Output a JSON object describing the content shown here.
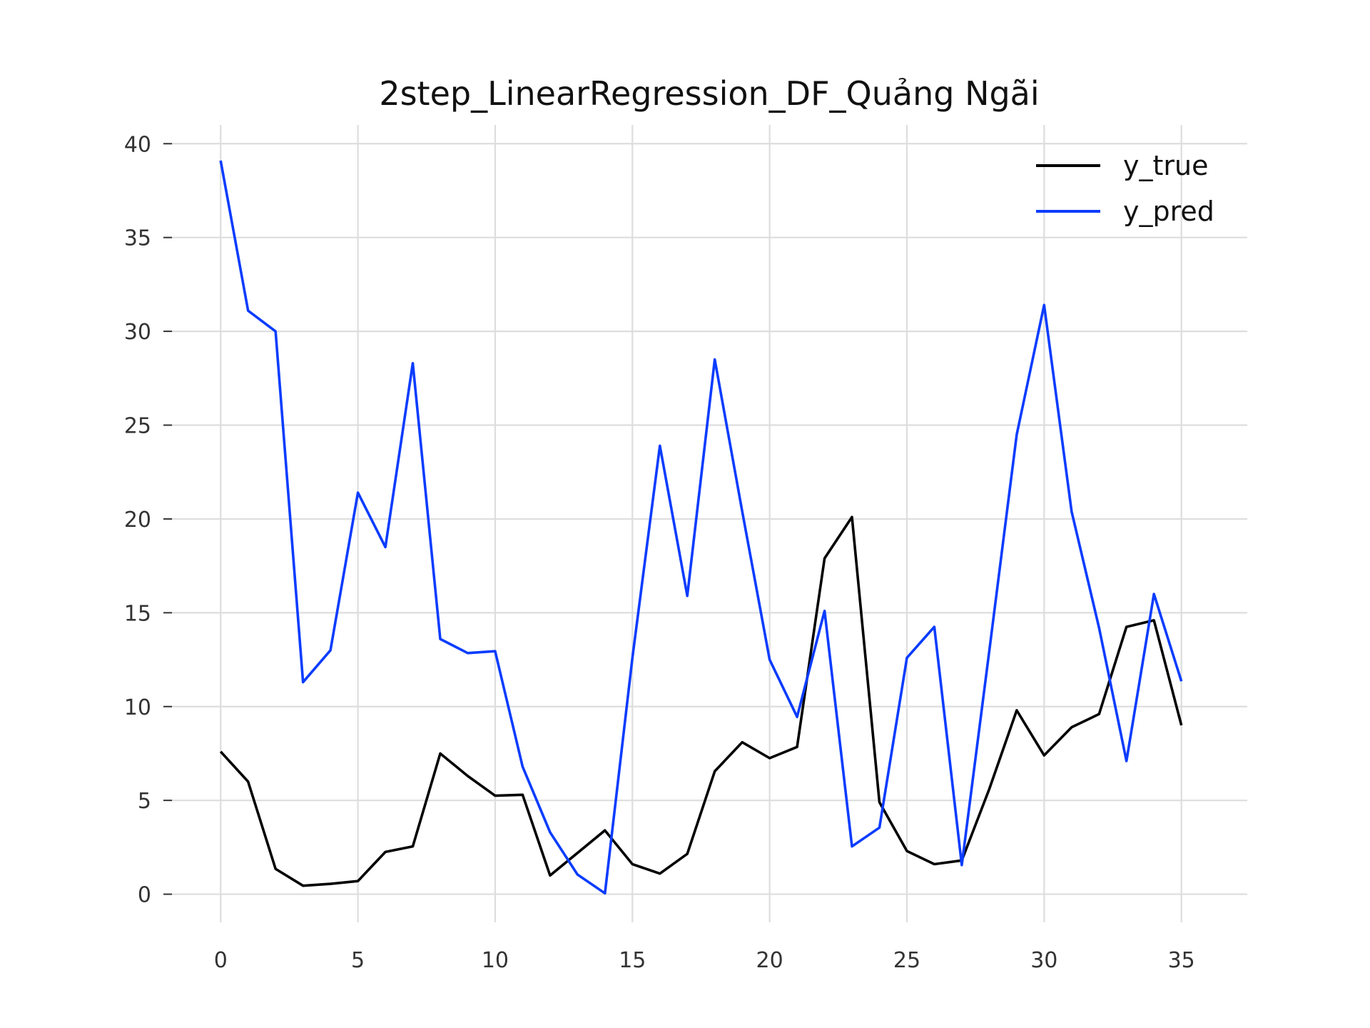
{
  "chart_data": {
    "type": "line",
    "title": "2step_LinearRegression_DF_Quảng Ngãi",
    "xlabel": "",
    "ylabel": "",
    "xlim": [
      -1.8,
      37.4
    ],
    "ylim": [
      -1.5,
      41
    ],
    "x_ticks": [
      0,
      5,
      10,
      15,
      20,
      25,
      30,
      35
    ],
    "y_ticks": [
      0,
      5,
      10,
      15,
      20,
      25,
      30,
      35,
      40
    ],
    "grid": true,
    "legend_position": "top-right",
    "x": [
      0,
      1,
      2,
      3,
      4,
      5,
      6,
      7,
      8,
      9,
      10,
      11,
      12,
      13,
      14,
      15,
      16,
      17,
      18,
      19,
      20,
      21,
      22,
      23,
      24,
      25,
      26,
      27,
      28,
      29,
      30,
      31,
      32,
      33,
      34,
      35
    ],
    "series": [
      {
        "name": "y_true",
        "color": "#000000",
        "values": [
          7.6,
          6.0,
          1.35,
          0.45,
          0.55,
          0.7,
          2.25,
          2.55,
          7.5,
          6.3,
          5.25,
          5.3,
          1.0,
          2.2,
          3.4,
          1.6,
          1.1,
          2.15,
          6.55,
          8.1,
          7.25,
          7.85,
          17.9,
          20.1,
          4.9,
          2.3,
          1.6,
          1.8,
          5.6,
          9.8,
          7.4,
          8.9,
          9.6,
          14.25,
          14.6,
          9.0
        ]
      },
      {
        "name": "y_pred",
        "color": "#0a3cff",
        "values": [
          39.1,
          31.1,
          30.0,
          11.3,
          13.0,
          21.4,
          18.5,
          28.3,
          13.6,
          12.85,
          12.95,
          6.8,
          3.3,
          1.05,
          0.05,
          12.6,
          23.9,
          15.9,
          28.5,
          20.4,
          12.5,
          9.45,
          15.1,
          2.55,
          3.55,
          12.6,
          14.25,
          1.55,
          12.95,
          24.5,
          31.4,
          20.4,
          14.2,
          7.1,
          16.0,
          11.35
        ]
      }
    ]
  }
}
